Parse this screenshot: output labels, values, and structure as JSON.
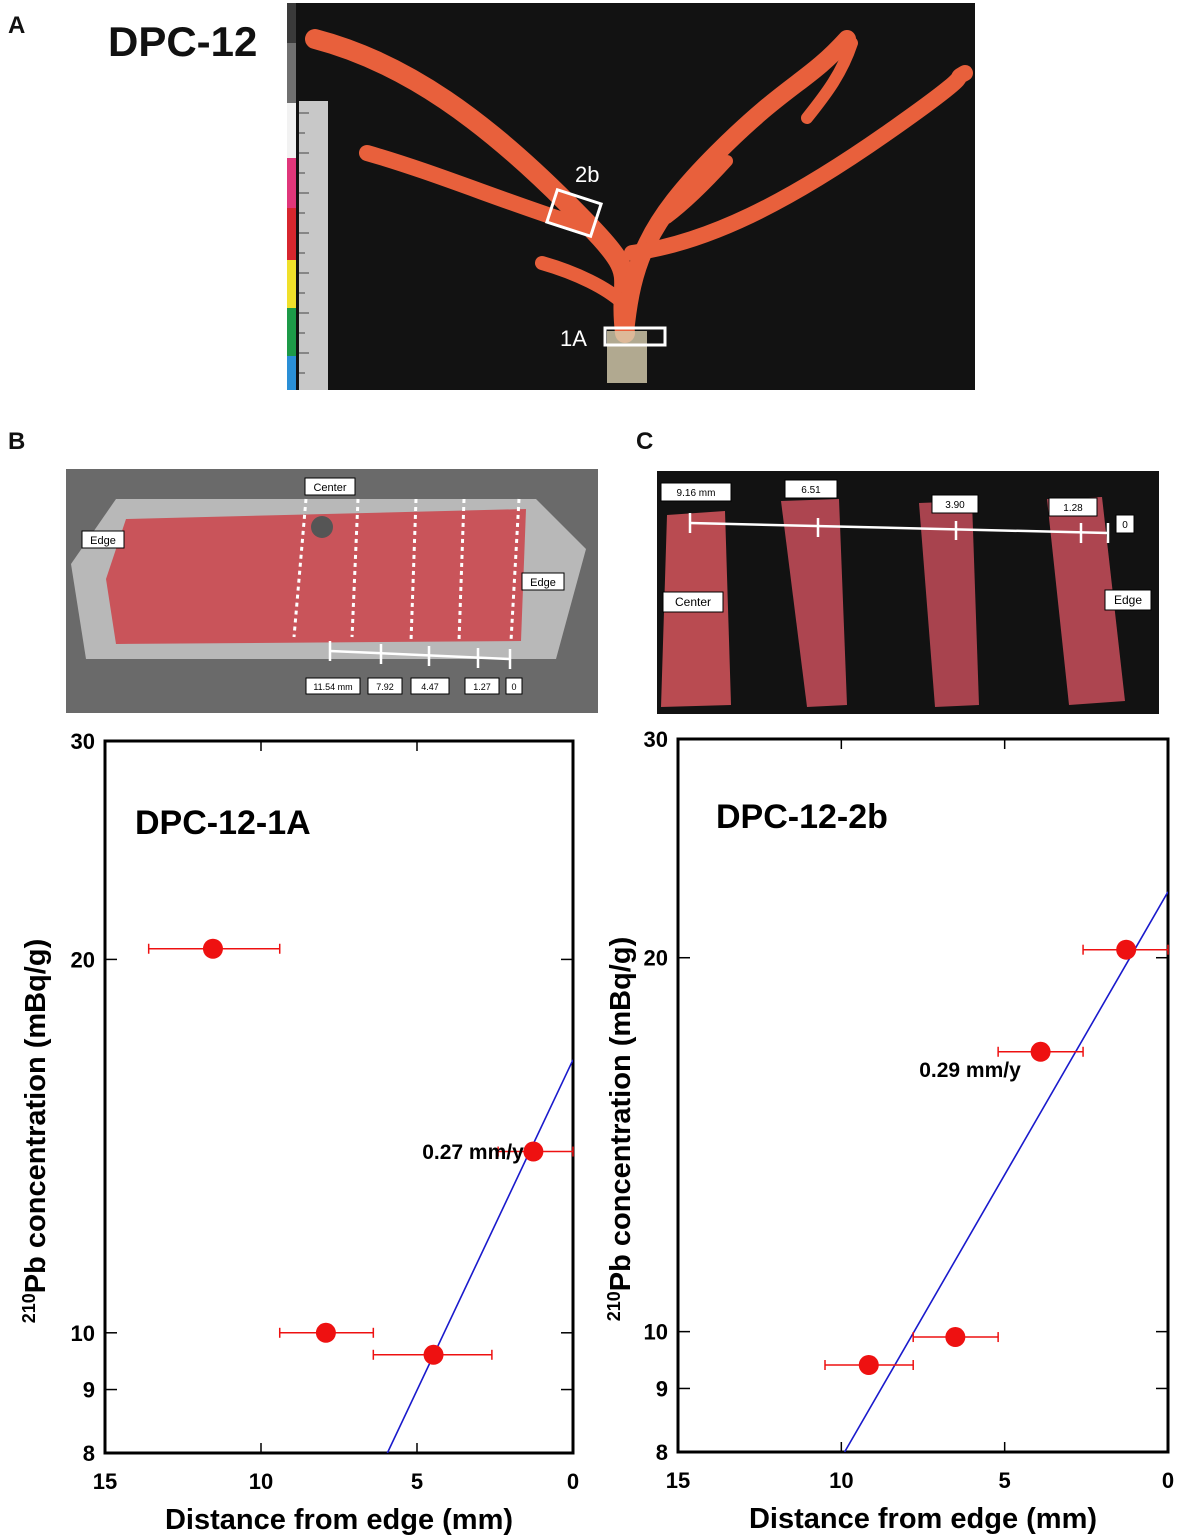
{
  "figure": {
    "panel_a": {
      "letter": "A",
      "specimen": "DPC-12",
      "box_2b": "2b",
      "box_1a": "1A"
    },
    "panel_b": {
      "letter": "B",
      "label_center": "Center",
      "label_edge_left": "Edge",
      "label_edge_right": "Edge",
      "scale_labels": [
        "11.54 mm",
        "7.92",
        "4.47",
        "1.27",
        "0"
      ]
    },
    "panel_c": {
      "letter": "C",
      "label_center": "Center",
      "label_edge": "Edge",
      "scale_labels": [
        "9.16 mm",
        "6.51",
        "3.90",
        "1.28",
        "0"
      ]
    }
  },
  "colors": {
    "point": "#ee1111",
    "errorbar": "#ee1111",
    "fit_line": "#1a1acc",
    "coral": "#e8603c",
    "photo_bg": "#121212",
    "slab": "#c9545a"
  },
  "chart_data": [
    {
      "type": "scatter",
      "title": "DPC-12-1A",
      "xlabel": "Distance from edge (mm)",
      "ylabel_sup": "210",
      "ylabel": "Pb concentration (mBq/g)",
      "x_reversed": true,
      "xlim": [
        15,
        0
      ],
      "y_scale": "log",
      "ylim": [
        8,
        30
      ],
      "x_ticks": [
        15,
        10,
        5,
        0
      ],
      "y_ticks": [
        8,
        9,
        10,
        20,
        30
      ],
      "points": [
        {
          "x": 11.54,
          "y": 20.4,
          "xerr_low": 13.6,
          "xerr_high": 9.4
        },
        {
          "x": 7.92,
          "y": 10.0,
          "xerr_low": 9.4,
          "xerr_high": 6.4
        },
        {
          "x": 4.47,
          "y": 9.6,
          "xerr_low": 6.4,
          "xerr_high": 2.6
        },
        {
          "x": 1.27,
          "y": 14.0,
          "xerr_low": 2.4,
          "xerr_high": 0.0
        }
      ],
      "fit_line": {
        "from": [
          5.95,
          8.0
        ],
        "to": [
          0.0,
          16.6
        ]
      },
      "annotation": "0.27 mm/y"
    },
    {
      "type": "scatter",
      "title": "DPC-12-2b",
      "xlabel": "Distance from edge (mm)",
      "ylabel_sup": "210",
      "ylabel": "Pb concentration (mBq/g)",
      "x_reversed": true,
      "xlim": [
        15,
        0
      ],
      "y_scale": "log",
      "ylim": [
        8,
        30
      ],
      "x_ticks": [
        15,
        10,
        5,
        0
      ],
      "y_ticks": [
        8,
        9,
        10,
        20,
        30
      ],
      "points": [
        {
          "x": 9.16,
          "y": 9.4,
          "xerr_low": 10.5,
          "xerr_high": 7.8
        },
        {
          "x": 6.51,
          "y": 9.9,
          "xerr_low": 7.8,
          "xerr_high": 5.2
        },
        {
          "x": 3.9,
          "y": 16.8,
          "xerr_low": 5.2,
          "xerr_high": 2.6
        },
        {
          "x": 1.28,
          "y": 20.3,
          "xerr_low": 2.6,
          "xerr_high": 0.0
        }
      ],
      "fit_line": {
        "from": [
          9.9,
          8.0
        ],
        "to": [
          0.0,
          22.6
        ]
      },
      "annotation": "0.29 mm/y"
    }
  ]
}
